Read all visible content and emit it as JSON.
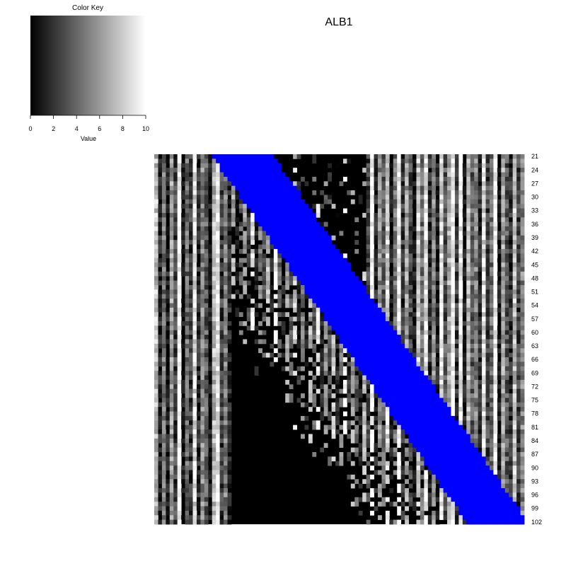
{
  "chart_data": {
    "type": "heatmap",
    "title": "ALB1",
    "color_key": {
      "title": "Color Key",
      "xlabel": "Value",
      "ticks": [
        0,
        2,
        4,
        6,
        8,
        10
      ],
      "range": [
        0,
        10
      ],
      "low_color": "#000000",
      "high_color": "#ffffff"
    },
    "rows": {
      "first": 21,
      "last": 102,
      "labels": [
        "21",
        "24",
        "27",
        "30",
        "33",
        "36",
        "39",
        "42",
        "45",
        "48",
        "51",
        "54",
        "57",
        "60",
        "63",
        "66",
        "69",
        "72",
        "75",
        "78",
        "81",
        "84",
        "87",
        "90",
        "93",
        "96",
        "99",
        "102"
      ]
    },
    "band_color": "#0000ff",
    "band": {
      "start_row_21": 15.5,
      "start_row_102": 81.5,
      "width": 16
    },
    "column_base_values": [
      7.5,
      1.2,
      4.6,
      0.8,
      6.2,
      2.4,
      10,
      0.3,
      4.2,
      2.2,
      8.6,
      1.4,
      5.3,
      3.6,
      0.6,
      7.2,
      9.1,
      2.3,
      4.9,
      1.2,
      6.4,
      0.4,
      3.3,
      5.7,
      1.8,
      8.4,
      0.3,
      4.5,
      2.7,
      6.9,
      1.1,
      9.4,
      3.3,
      0.5,
      5.8,
      2.9,
      7.6,
      1.4,
      4.3,
      0.3,
      6.6,
      3.2,
      8.8,
      1.1,
      5.1,
      2.3,
      7.4,
      0.6,
      4.8,
      9.9,
      1.8,
      6.2,
      3.4,
      0.5,
      7.1,
      2.5,
      10,
      1.3,
      5.4,
      3.8,
      8.2,
      0.4,
      4.6,
      9.5,
      1.9,
      6.3,
      2.8,
      0.3,
      7.7,
      4.1,
      9,
      1.4,
      5.6,
      0.8,
      8.5,
      3.1,
      6.6,
      10,
      2.2,
      9.6,
      0.6,
      7.3,
      3.6,
      5.1,
      1.3,
      8.7,
      2.6,
      4.2,
      9.8,
      0.5,
      6.4,
      3.4,
      1.5,
      7.6,
      2.3,
      5.2
    ],
    "dark_value": 0
  }
}
